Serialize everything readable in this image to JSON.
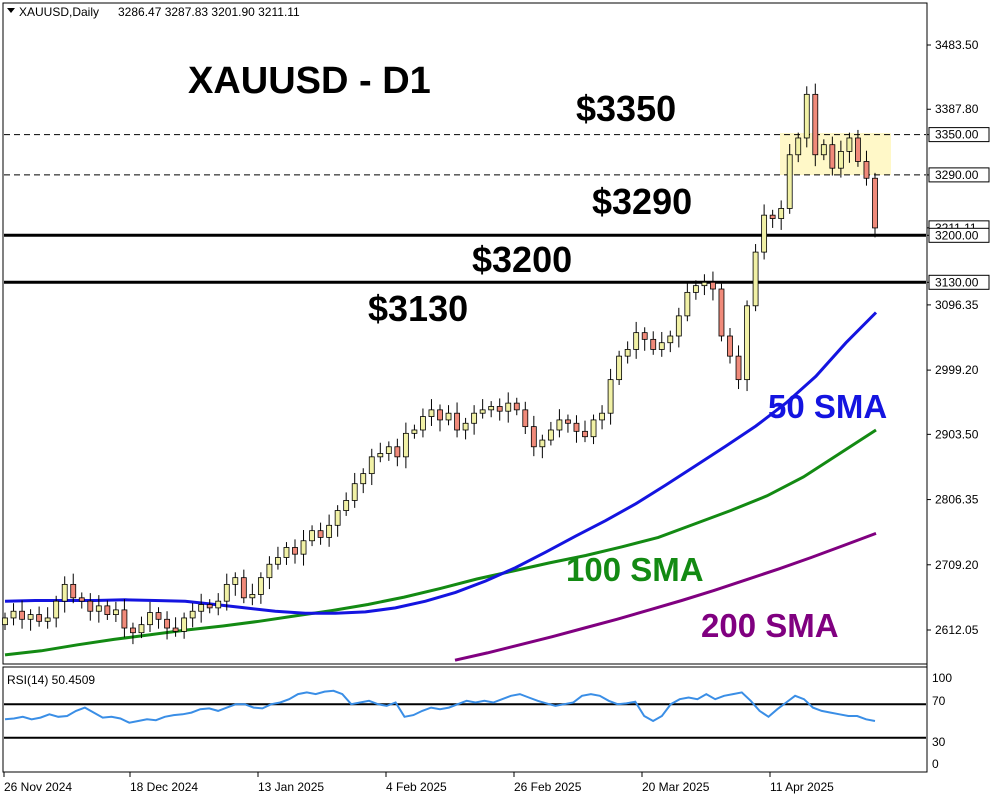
{
  "header": {
    "symbol_info": "XAUUSD,Daily",
    "ohlc": "3286.47 3287.83 3201.90 3211.11",
    "chart_title": "XAUUSD - D1"
  },
  "rsi_panel": {
    "label": "RSI(14) 50.4509",
    "levels": [
      "100",
      "70",
      "30",
      "0"
    ]
  },
  "annotations": {
    "levels": [
      "$3350",
      "$3290",
      "$3200",
      "$3130"
    ],
    "sma50": "50 SMA",
    "sma100": "100 SMA",
    "sma200": "200 SMA"
  },
  "colors": {
    "bull_candle": "#f1f1a6",
    "bear_candle": "#f08a7a",
    "sma50": "#1414e0",
    "sma100": "#138a13",
    "sma200": "#800080",
    "rsi": "#3a8ee6",
    "highlight": "#fff7c2"
  },
  "chart_data": {
    "type": "line",
    "title": "XAUUSD - D1",
    "x_ticks": [
      "26 Nov 2024",
      "18 Dec 2024",
      "13 Jan 2025",
      "4 Feb 2025",
      "26 Feb 2025",
      "20 Mar 2025",
      "11 Apr 2025"
    ],
    "y_ticks": [
      "3483.50",
      "3387.80",
      "3350.00",
      "3290.00",
      "3211.11",
      "3200.00",
      "3130.00",
      "3096.35",
      "2999.20",
      "2903.50",
      "2806.35",
      "2709.20",
      "2612.05"
    ],
    "ylim": [
      2570,
      3540
    ],
    "horizontal_levels": [
      {
        "value": 3350,
        "style": "dashed"
      },
      {
        "value": 3290,
        "style": "dashed"
      },
      {
        "value": 3200,
        "style": "solid"
      },
      {
        "value": 3130,
        "style": "solid"
      }
    ],
    "price_close": [
      2630,
      2640,
      2628,
      2635,
      2625,
      2630,
      2655,
      2680,
      2660,
      2655,
      2640,
      2648,
      2635,
      2642,
      2615,
      2608,
      2620,
      2638,
      2628,
      2615,
      2610,
      2630,
      2640,
      2650,
      2645,
      2655,
      2680,
      2690,
      2660,
      2665,
      2690,
      2710,
      2720,
      2735,
      2725,
      2745,
      2760,
      2750,
      2768,
      2790,
      2805,
      2830,
      2845,
      2870,
      2875,
      2885,
      2870,
      2905,
      2910,
      2930,
      2940,
      2925,
      2935,
      2910,
      2920,
      2935,
      2940,
      2945,
      2938,
      2950,
      2940,
      2915,
      2885,
      2895,
      2910,
      2925,
      2920,
      2908,
      2900,
      2925,
      2935,
      2985,
      3020,
      3030,
      3055,
      3045,
      3030,
      3040,
      3050,
      3080,
      3115,
      3125,
      3130,
      3120,
      3050,
      3020,
      2985,
      3095,
      3175,
      3230,
      3225,
      3240,
      3320,
      3345,
      3410,
      3320,
      3335,
      3300,
      3325,
      3345,
      3310,
      3285,
      3211
    ],
    "sma50": [
      2655,
      2656,
      2656,
      2656,
      2657,
      2656,
      2655,
      2650,
      2645,
      2640,
      2637,
      2637,
      2639,
      2645,
      2655,
      2668,
      2685,
      2705,
      2728,
      2752,
      2775,
      2800,
      2828,
      2857,
      2886,
      2916,
      2950,
      2990,
      3040,
      3085
    ],
    "sma100": [
      2575,
      2581,
      2590,
      2598,
      2605,
      2612,
      2618,
      2625,
      2633,
      2641,
      2650,
      2661,
      2674,
      2688,
      2700,
      2712,
      2723,
      2736,
      2750,
      2770,
      2790,
      2812,
      2840,
      2875,
      2910
    ],
    "sma200": [
      2567,
      2578,
      2590,
      2602,
      2615,
      2628,
      2642,
      2656,
      2671,
      2687,
      2703,
      2720,
      2738,
      2756
    ],
    "rsi": [
      52,
      53,
      55,
      52,
      54,
      58,
      55,
      56,
      62,
      66,
      60,
      54,
      55,
      53,
      48,
      50,
      52,
      51,
      55,
      57,
      58,
      60,
      64,
      65,
      62,
      66,
      70,
      70,
      66,
      65,
      70,
      72,
      76,
      82,
      84,
      82,
      85,
      86,
      82,
      70,
      72,
      74,
      70,
      68,
      72,
      55,
      57,
      62,
      66,
      64,
      66,
      70,
      74,
      72,
      74,
      72,
      76,
      80,
      82,
      78,
      74,
      71,
      68,
      70,
      72,
      80,
      82,
      80,
      74,
      70,
      71,
      73,
      56,
      50,
      56,
      70,
      76,
      78,
      76,
      82,
      76,
      80,
      82,
      84,
      74,
      62,
      55,
      64,
      72,
      80,
      76,
      66,
      62,
      60,
      58,
      56,
      56,
      52,
      50
    ]
  }
}
